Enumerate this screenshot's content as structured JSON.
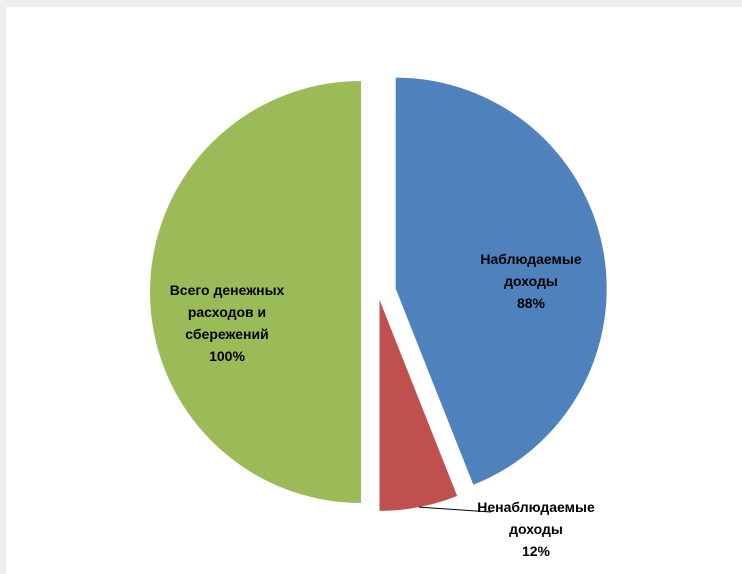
{
  "chart_data": {
    "type": "pie",
    "categories": [
      "Наблюдаемые доходы",
      "Ненаблюдаемые доходы",
      "Всего денежных расходов и сбережений"
    ],
    "values": [
      88,
      12,
      100
    ],
    "percent_labels": [
      "88%",
      "12%",
      "100%"
    ],
    "colors": [
      "#4F81BD",
      "#C0504D",
      "#9BBB59"
    ],
    "title": "",
    "legend": "none",
    "data_labels": [
      {
        "lines": [
          "Наблюдаемые",
          "доходы",
          "88%"
        ]
      },
      {
        "lines": [
          "Ненаблюдаемые",
          "доходы",
          "12%"
        ]
      },
      {
        "lines": [
          "Всего денежных",
          "расходов и",
          "сбережений",
          "100%"
        ]
      }
    ]
  }
}
